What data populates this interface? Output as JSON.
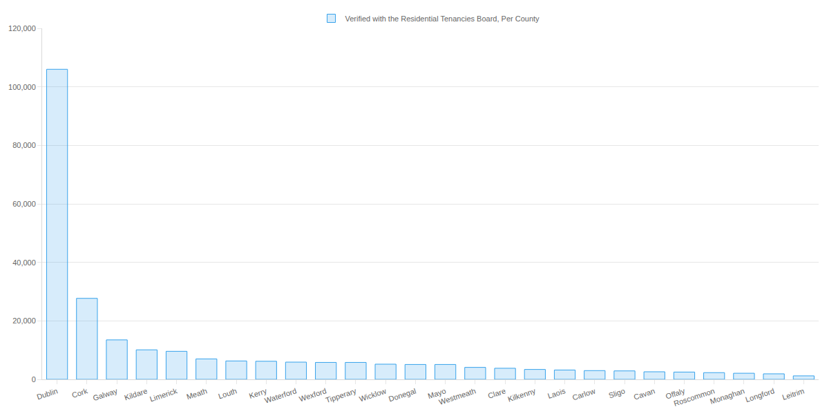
{
  "chart_data": {
    "type": "bar",
    "categories": [
      "Dublin",
      "Cork",
      "Galway",
      "Kildare",
      "Limerick",
      "Meath",
      "Louth",
      "Kerry",
      "Waterford",
      "Wexford",
      "Tipperary",
      "Wicklow",
      "Donegal",
      "Mayo",
      "Westmeath",
      "Clare",
      "Kilkenny",
      "Laois",
      "Carlow",
      "Sligo",
      "Cavan",
      "Offaly",
      "Roscommon",
      "Monaghan",
      "Longford",
      "Leitrim"
    ],
    "series": [
      {
        "name": "Verified with the Residential Tenancies Board, Per County",
        "color": "#36a2eb",
        "values": [
          106000,
          27700,
          13500,
          10100,
          9600,
          7000,
          6300,
          6200,
          5900,
          5800,
          5800,
          5200,
          5100,
          5100,
          4100,
          3800,
          3400,
          3200,
          3000,
          2900,
          2600,
          2500,
          2300,
          2100,
          1900,
          1200
        ]
      }
    ],
    "ylim": [
      0,
      120000
    ],
    "yticks": [
      0,
      {
        "value": 20000,
        "label": "20,000"
      },
      {
        "value": 40000,
        "label": "40,000"
      },
      {
        "value": 60000,
        "label": "60,000"
      },
      {
        "value": 80000,
        "label": "80,000"
      },
      {
        "value": 100000,
        "label": "100,000"
      },
      {
        "value": 120000,
        "label": "120,000"
      }
    ],
    "grid": true,
    "legend": "top"
  }
}
